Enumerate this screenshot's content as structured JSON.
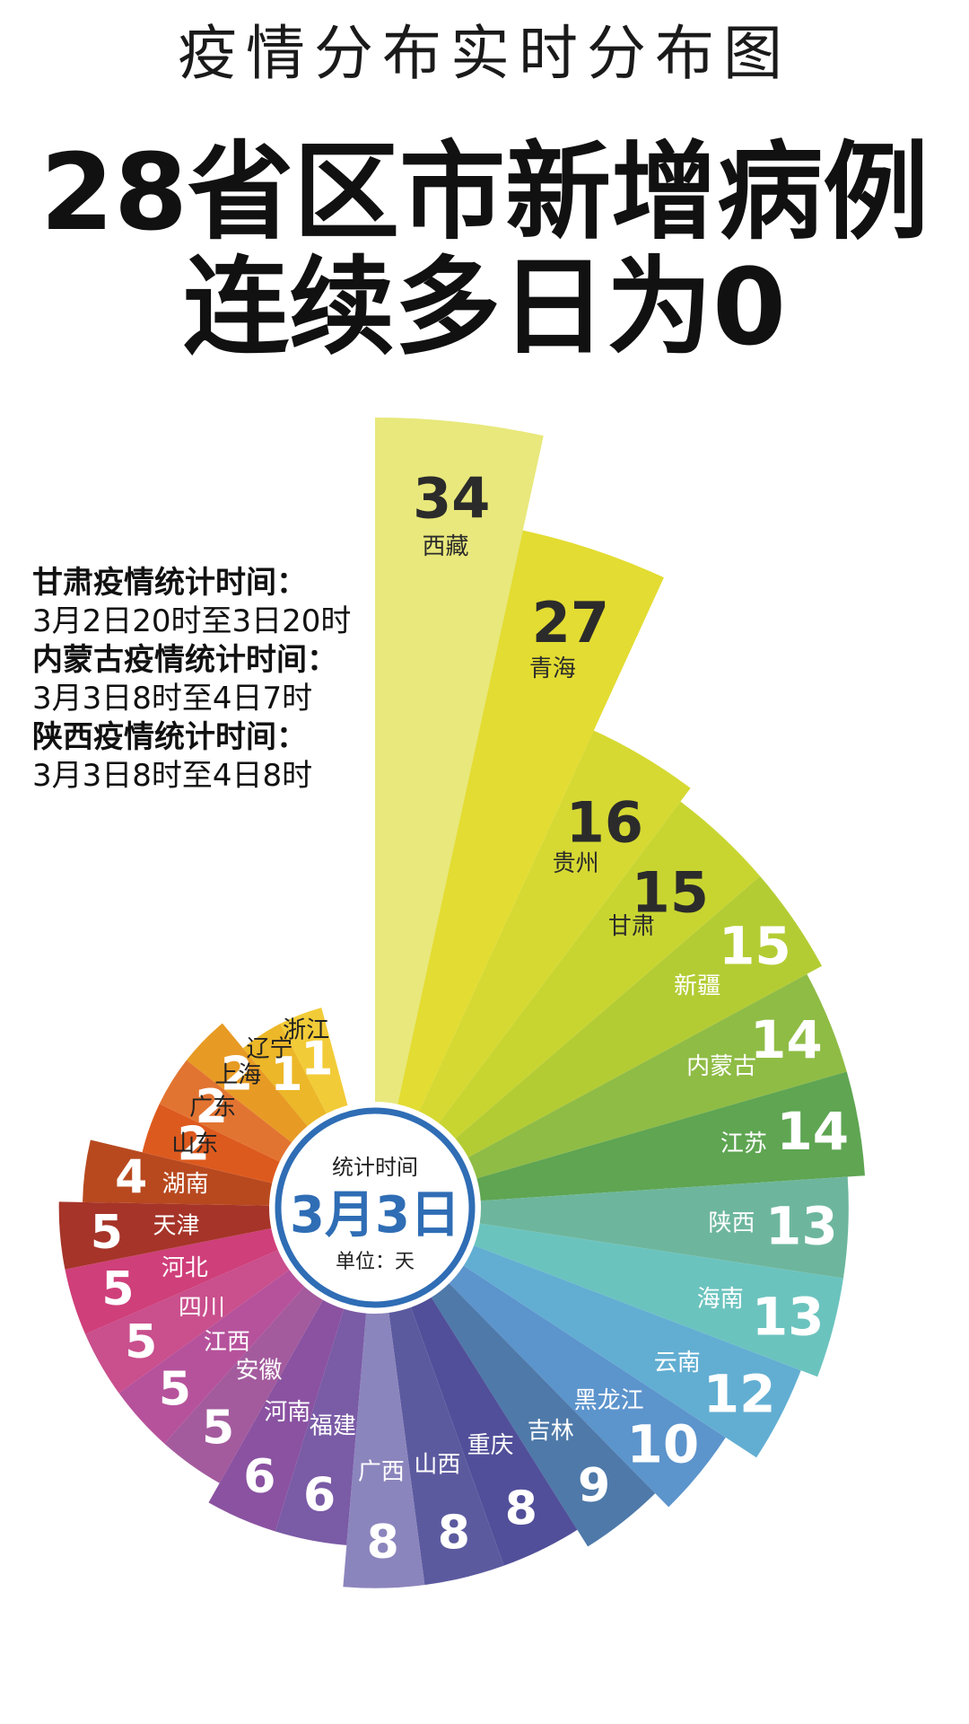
{
  "header": {
    "subtitle": "疫情分布实时分布图",
    "title_line1": "28省区市新增病例",
    "title_line2": "连续多日为0"
  },
  "notes": [
    {
      "label": "甘肃疫情统计时间：",
      "value": "3月2日20时至3日20时"
    },
    {
      "label": "内蒙古疫情统计时间：",
      "value": "3月3日8时至4日7时"
    },
    {
      "label": "陕西疫情统计时间：",
      "value": "3月3日8时至4日8时"
    }
  ],
  "center": {
    "label": "统计时间",
    "date": "3月3日",
    "unit": "单位：天",
    "ring_color": "#2f6db5",
    "date_color": "#2f6db5"
  },
  "chart_data": {
    "type": "bar",
    "subtype": "radial-rose",
    "categories": [
      "西藏",
      "青海",
      "贵州",
      "甘肃",
      "新疆",
      "内蒙古",
      "江苏",
      "陕西",
      "海南",
      "云南",
      "黑龙江",
      "吉林",
      "重庆",
      "山西",
      "广西",
      "福建",
      "河南",
      "安徽",
      "江西",
      "四川",
      "河北",
      "天津",
      "湖南",
      "山东",
      "广东",
      "上海",
      "辽宁",
      "浙江"
    ],
    "values": [
      34,
      27,
      16,
      15,
      15,
      14,
      14,
      13,
      13,
      12,
      10,
      9,
      8,
      8,
      8,
      6,
      6,
      5,
      5,
      5,
      5,
      5,
      4,
      2,
      2,
      2,
      1,
      1
    ],
    "colors": [
      "#e8e87c",
      "#e3dc32",
      "#d6d932",
      "#c8d531",
      "#b4cc33",
      "#8fbc45",
      "#5fa552",
      "#6db69d",
      "#6bc3be",
      "#62aed2",
      "#5c94cc",
      "#4e79a9",
      "#514f99",
      "#5c5a9f",
      "#8b85bd",
      "#7a5ba6",
      "#8a52a1",
      "#a35b9d",
      "#b6529c",
      "#c94f8d",
      "#cf3f7a",
      "#a63429",
      "#b8491f",
      "#dd5a1e",
      "#e27431",
      "#e79b24",
      "#ecb728",
      "#f2cb38"
    ],
    "unit": "天"
  }
}
